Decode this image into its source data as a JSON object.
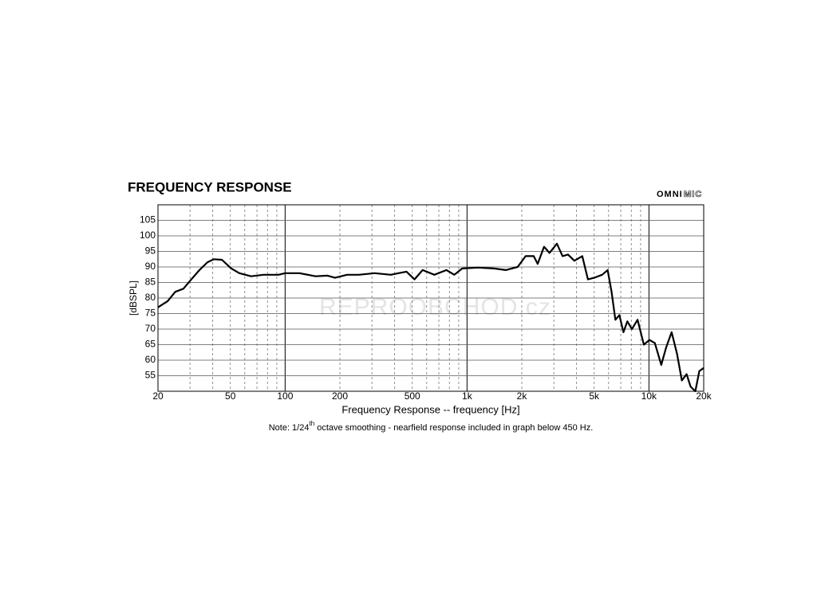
{
  "chart_data": {
    "type": "line",
    "title": "FREQUENCY RESPONSE",
    "brand": {
      "bold": "OMNI",
      "outline": "MIC"
    },
    "watermark": "REPROOBCHOD.cz",
    "xlabel": "Frequency Response -- frequency [Hz]",
    "ylabel": "[dBSPL]",
    "note": {
      "before": "Note: 1/24",
      "sup": "th",
      "after": " octave smoothing - nearfield response included in graph below 450 Hz."
    },
    "log_x": true,
    "xlim": [
      20,
      20000
    ],
    "ylim": [
      50,
      110
    ],
    "xticks": [
      20,
      50,
      100,
      200,
      500,
      {
        "value": 1000,
        "label": "1k"
      },
      {
        "value": 2000,
        "label": "2k"
      },
      {
        "value": 5000,
        "label": "5k"
      },
      {
        "value": 10000,
        "label": "10k"
      },
      {
        "value": 20000,
        "label": "20k"
      }
    ],
    "xgrid": [
      30,
      40,
      50,
      60,
      70,
      80,
      90,
      100,
      200,
      300,
      400,
      500,
      600,
      700,
      800,
      900,
      1000,
      2000,
      3000,
      4000,
      5000,
      6000,
      7000,
      8000,
      9000,
      10000
    ],
    "yticks": [
      55,
      60,
      65,
      70,
      75,
      80,
      85,
      90,
      95,
      100,
      105
    ],
    "grid": true,
    "series": [
      {
        "color": "#000000",
        "x": [
          20,
          22.6,
          24.9,
          27.6,
          30.5,
          33.8,
          37.4,
          40.6,
          44.9,
          50.6,
          56,
          65,
          76,
          92,
          100,
          120,
          147,
          171,
          188,
          219,
          254,
          311,
          381,
          420,
          465,
          514,
          570,
          661,
          771,
          851,
          941,
          1150,
          1405,
          1635,
          1897,
          2100,
          2325,
          2445,
          2650,
          2840,
          3120,
          3350,
          3590,
          3890,
          4300,
          4620,
          5000,
          5530,
          5930,
          6230,
          6540,
          6880,
          7240,
          7610,
          8060,
          8660,
          9380,
          10060,
          10780,
          11690,
          12420,
          13320,
          14280,
          15170,
          16120,
          16930,
          17980,
          18910,
          20000
        ],
        "values": [
          77,
          79,
          82,
          83,
          86,
          89,
          91.5,
          92.5,
          92.3,
          89.5,
          88,
          87,
          87.5,
          87.5,
          88,
          88,
          87,
          87.2,
          86.5,
          87.5,
          87.5,
          88,
          87.5,
          88,
          88.5,
          86,
          89,
          87.5,
          89,
          87.5,
          89.5,
          89.8,
          89.5,
          89,
          90,
          93.5,
          93.5,
          91,
          96.5,
          94.5,
          97.5,
          93.5,
          94,
          92,
          93.5,
          86,
          86.5,
          87.5,
          89,
          82,
          73,
          74.5,
          69,
          72.5,
          70,
          73,
          65,
          66.5,
          65.5,
          58.5,
          64,
          69,
          62,
          53.5,
          55.5,
          51.5,
          50,
          56.5,
          57.5
        ]
      }
    ]
  }
}
